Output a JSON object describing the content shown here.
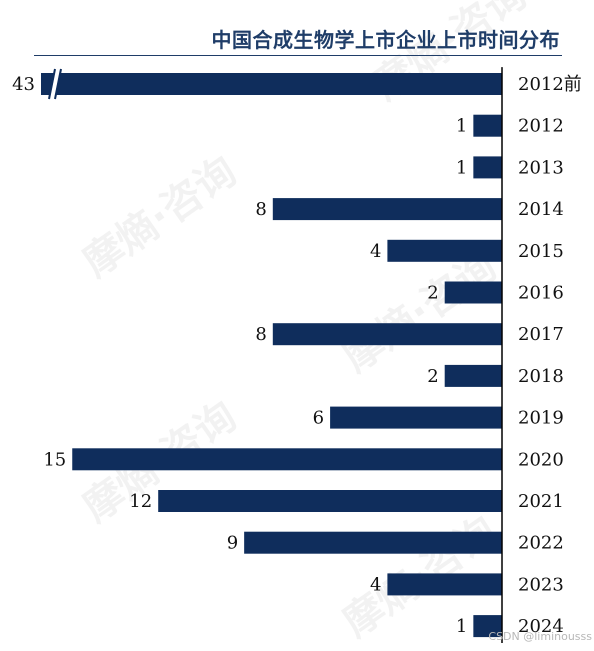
{
  "watermark_text": "摩熵·咨询",
  "csdn_watermark": "CSDN @liminousss",
  "chart_data": {
    "type": "bar",
    "orientation": "horizontal",
    "title": "中国合成生物学上市企业上市时间分布",
    "categories": [
      "2012前",
      "2012",
      "2013",
      "2014",
      "2015",
      "2016",
      "2017",
      "2018",
      "2019",
      "2020",
      "2021",
      "2022",
      "2023",
      "2024"
    ],
    "values": [
      43,
      1,
      1,
      8,
      4,
      2,
      8,
      2,
      6,
      15,
      12,
      9,
      4,
      1
    ],
    "axis_break": {
      "category": "2012前"
    },
    "bar_direction": "right-to-left",
    "grid": false,
    "colors": {
      "bar": "#0f2d5c",
      "title": "#1f3d68"
    }
  }
}
